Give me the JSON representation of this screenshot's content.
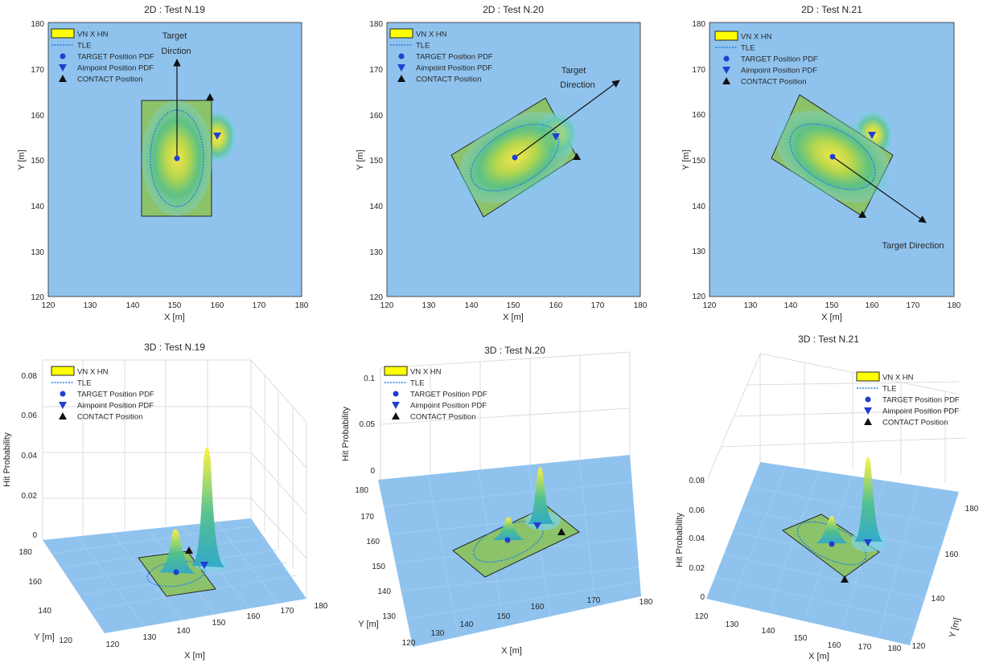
{
  "colors": {
    "background": "#8fc3ee",
    "rectangle_fill": "#8cc36a",
    "axis": "#262626",
    "grid_3d": "#d4d4d4",
    "tle_line": "#2a7de1",
    "target_marker": "#1f3fd0",
    "aimpoint_marker": "#1f3fd0",
    "contact_marker": "#111111",
    "legend_swatch": "#ffff00",
    "peak_yellow": "#ffe94a",
    "mid_green": "#4fc08d",
    "edge_cyan": "#7fd3e6"
  },
  "legend": {
    "items": [
      {
        "label": "VN X HN",
        "symbol": "yellow-rectangle"
      },
      {
        "label": "TLE",
        "symbol": "line-with-dots"
      },
      {
        "label": "TARGET Position PDF",
        "symbol": "circle"
      },
      {
        "label": "Aimpoint Position PDF",
        "symbol": "triangle-down"
      },
      {
        "label": "CONTACT Position",
        "symbol": "triangle-up"
      }
    ]
  },
  "chart_data": [
    {
      "type": "heatmap",
      "title": "2D : Test N.19",
      "xlabel": "X [m]",
      "ylabel": "Y [m]",
      "xlim": [
        120,
        180
      ],
      "ylim": [
        120,
        180
      ],
      "xticks": [
        "120",
        "130",
        "140",
        "150",
        "160",
        "170",
        "180"
      ],
      "yticks": [
        "120",
        "130",
        "140",
        "150",
        "160",
        "170",
        "180"
      ],
      "grid": false,
      "legend_position": "top-left",
      "target": [
        150,
        150
      ],
      "aimpoint": [
        160,
        155
      ],
      "contact": [
        158,
        163
      ],
      "rectangle_corners": [
        [
          142,
          137
        ],
        [
          158,
          137
        ],
        [
          158,
          163
        ],
        [
          142,
          163
        ]
      ],
      "tle_ellipse": {
        "center": [
          150,
          150
        ],
        "semi_axis_1": 6,
        "semi_axis_2": 11,
        "angle_deg": 0
      },
      "direction_arrow": {
        "from": [
          150,
          150
        ],
        "to": [
          150,
          172
        ]
      },
      "annotation": "Target Dirction"
    },
    {
      "type": "heatmap",
      "title": "2D : Test N.20",
      "xlabel": "X [m]",
      "ylabel": "Y [m]",
      "xlim": [
        120,
        180
      ],
      "ylim": [
        120,
        180
      ],
      "xticks": [
        "120",
        "130",
        "140",
        "150",
        "160",
        "170",
        "180"
      ],
      "yticks": [
        "120",
        "130",
        "140",
        "150",
        "160",
        "170",
        "180"
      ],
      "grid": false,
      "legend_position": "top-left",
      "target": [
        150,
        150
      ],
      "aimpoint": [
        160,
        155
      ],
      "contact": [
        165,
        150
      ],
      "rectangle_corners": [
        [
          143,
          137
        ],
        [
          165,
          150
        ],
        [
          157,
          163
        ],
        [
          135,
          150
        ]
      ],
      "tle_ellipse": {
        "center": [
          150,
          150
        ],
        "semi_axis_1": 11,
        "semi_axis_2": 6,
        "angle_deg": 30
      },
      "direction_arrow": {
        "from": [
          150,
          150
        ],
        "to": [
          176,
          167
        ]
      },
      "annotation": "Target\nDirection"
    },
    {
      "type": "heatmap",
      "title": "2D : Test N.21",
      "xlabel": "X [m]",
      "ylabel": "Y [m]",
      "xlim": [
        120,
        180
      ],
      "ylim": [
        120,
        180
      ],
      "xticks": [
        "120",
        "130",
        "140",
        "150",
        "160",
        "170",
        "180"
      ],
      "yticks": [
        "120",
        "130",
        "140",
        "150",
        "160",
        "170",
        "180"
      ],
      "grid": false,
      "legend_position": "top-left",
      "target": [
        150,
        150
      ],
      "aimpoint": [
        160,
        155
      ],
      "contact": [
        157,
        137
      ],
      "rectangle_corners": [
        [
          157,
          137
        ],
        [
          165,
          150
        ],
        [
          143,
          163
        ],
        [
          135,
          150
        ]
      ],
      "tle_ellipse": {
        "center": [
          150,
          150
        ],
        "semi_axis_1": 11,
        "semi_axis_2": 6,
        "angle_deg": -30
      },
      "direction_arrow": {
        "from": [
          150,
          150
        ],
        "to": [
          174,
          135
        ]
      },
      "annotation": "Target Direction"
    },
    {
      "type": "area",
      "title": "3D : Test N.19",
      "xlabel": "X [m]",
      "ylabel": "Y [m]",
      "zlabel": "Hit Probability",
      "xticks": [
        "120",
        "130",
        "140",
        "150",
        "160",
        "170",
        "180"
      ],
      "yticks": [
        "120",
        "140",
        "160",
        "180"
      ],
      "zticks": [
        "0",
        "0.02",
        "0.04",
        "0.06",
        "0.08"
      ],
      "zlim": [
        0,
        0.08
      ],
      "grid": true,
      "legend_position": "top-left",
      "peaks": [
        {
          "x": 150,
          "y": 150,
          "z": 0.015
        },
        {
          "x": 160,
          "y": 155,
          "z": 0.058
        }
      ]
    },
    {
      "type": "area",
      "title": "3D : Test N.20",
      "xlabel": "X [m]",
      "ylabel": "Y [m]",
      "zlabel": "Hit Probability",
      "xticks": [
        "120",
        "130",
        "140",
        "150",
        "160",
        "170",
        "180"
      ],
      "yticks": [
        "130",
        "140",
        "150",
        "160",
        "170",
        "180"
      ],
      "zticks": [
        "0",
        "0.05",
        "0.1"
      ],
      "zlim": [
        0,
        0.1
      ],
      "grid": true,
      "legend_position": "top-left",
      "peaks": [
        {
          "x": 150,
          "y": 150,
          "z": 0.012
        },
        {
          "x": 160,
          "y": 155,
          "z": 0.055
        }
      ]
    },
    {
      "type": "area",
      "title": "3D : Test N.21",
      "xlabel": "X [m]",
      "ylabel": "Y [m]",
      "zlabel": "Hit Probability",
      "xticks": [
        "120",
        "130",
        "140",
        "150",
        "160",
        "170",
        "180"
      ],
      "yticks": [
        "120",
        "140",
        "160",
        "180"
      ],
      "zticks": [
        "0",
        "0.02",
        "0.04",
        "0.06",
        "0.08"
      ],
      "zlim": [
        0,
        0.08
      ],
      "grid": true,
      "legend_position": "top-right",
      "peaks": [
        {
          "x": 150,
          "y": 150,
          "z": 0.014
        },
        {
          "x": 160,
          "y": 155,
          "z": 0.06
        }
      ]
    }
  ]
}
